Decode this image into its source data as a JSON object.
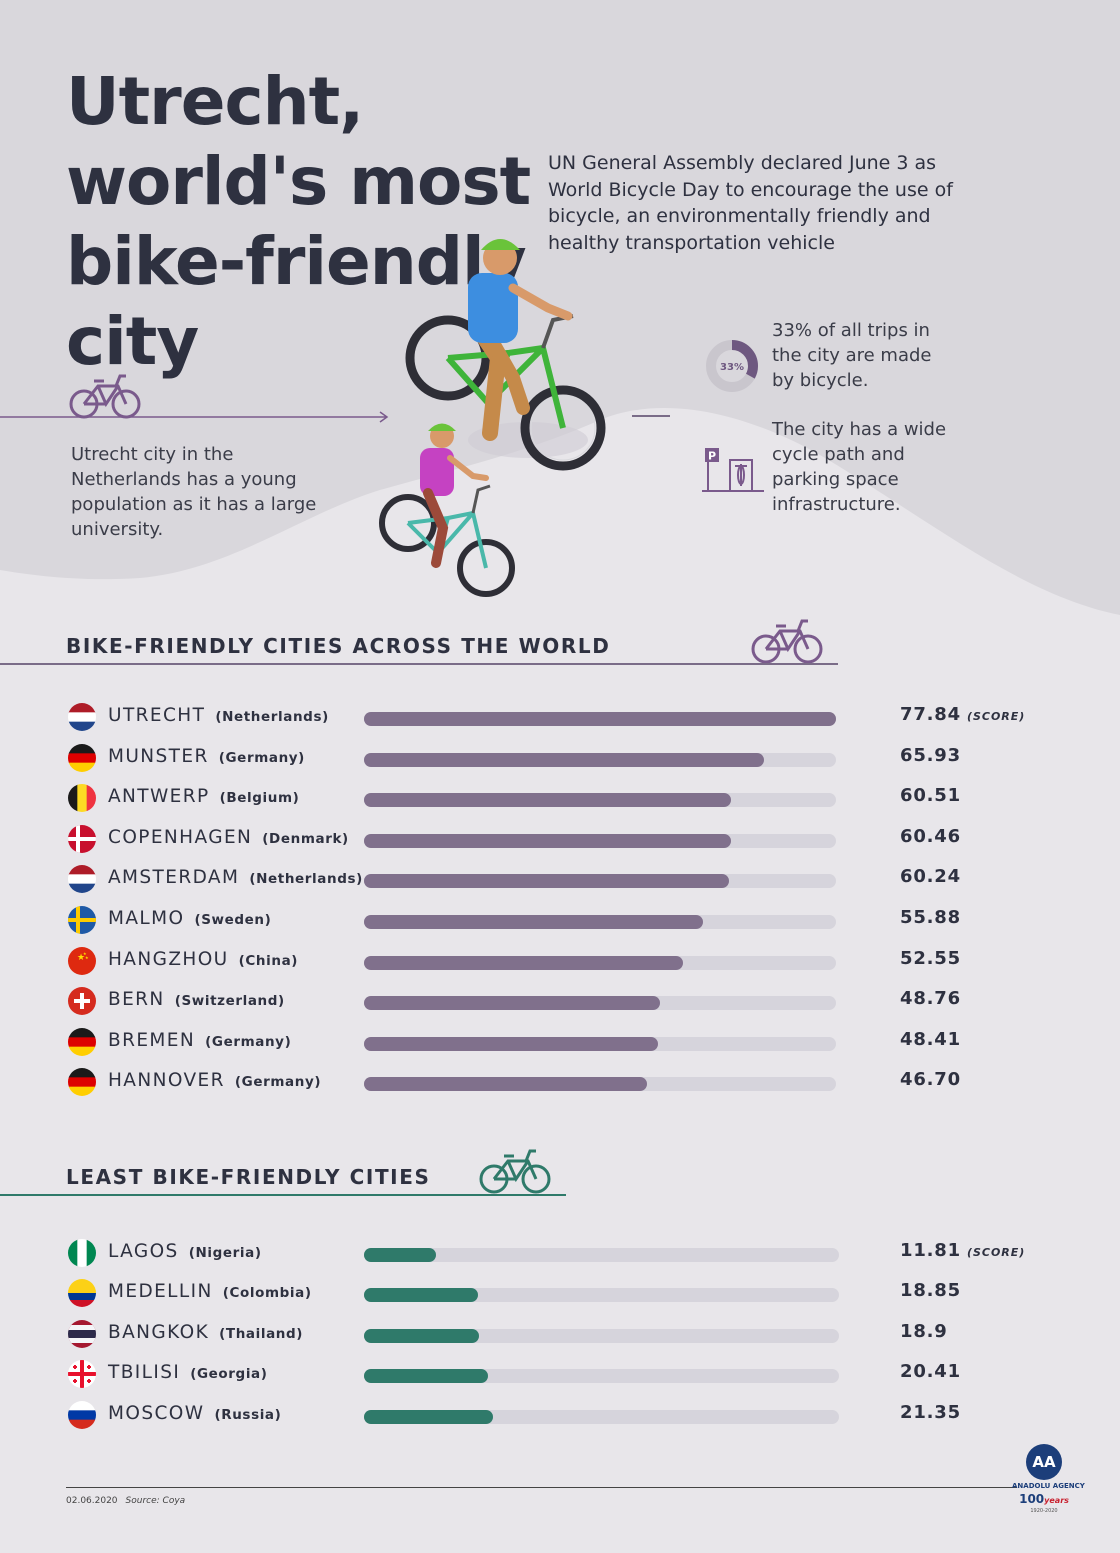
{
  "header": {
    "title": "Utrecht, world's most bike-friendly city",
    "intro": "UN General Assembly declared June 3 as World Bicycle Day to encourage the use of bicycle, an environmentally friendly and healthy transportation vehicle"
  },
  "notes": {
    "left": "Utrecht city in the Netherlands has a young population as it has a large university.",
    "donut_label": "33%",
    "donut_value": 0.33,
    "trips": "33% of all trips in the city are made by bicycle.",
    "parking_letter": "P",
    "infrastructure": "The city has a wide cycle path and parking space infrastructure."
  },
  "sections": {
    "most_title": "BIKE-FRIENDLY CITIES ACROSS THE WORLD",
    "least_title": "LEAST BIKE-FRIENDLY CITIES",
    "score_unit": "(SCORE)"
  },
  "colors": {
    "most_bar": "#80708c",
    "least_bar": "#2f7a6a",
    "track": "#d6d4dc",
    "accent": "#7a6c88"
  },
  "chart_data": [
    {
      "type": "bar",
      "title": "BIKE-FRIENDLY CITIES ACROSS THE WORLD",
      "ylim": [
        0,
        77.84
      ],
      "categories": [
        "UTRECHT",
        "MUNSTER",
        "ANTWERP",
        "COPENHAGEN",
        "AMSTERDAM",
        "MALMO",
        "HANGZHOU",
        "BERN",
        "BREMEN",
        "HANNOVER"
      ],
      "countries": [
        "(Netherlands)",
        "(Germany)",
        "(Belgium)",
        "(Denmark)",
        "(Netherlands)",
        "(Sweden)",
        "(China)",
        "(Switzerland)",
        "(Germany)",
        "(Germany)"
      ],
      "flags": [
        "netherlands",
        "germany",
        "belgium",
        "denmark",
        "netherlands",
        "sweden",
        "china",
        "switzerland",
        "germany",
        "germany"
      ],
      "values": [
        77.84,
        65.93,
        60.51,
        60.46,
        60.24,
        55.88,
        52.55,
        48.76,
        48.41,
        46.7
      ],
      "labels": [
        "77.84",
        "65.93",
        "60.51",
        "60.46",
        "60.24",
        "55.88",
        "52.55",
        "48.76",
        "48.41",
        "46.70"
      ]
    },
    {
      "type": "bar",
      "title": "LEAST BIKE-FRIENDLY CITIES",
      "ylim": [
        0,
        77.84
      ],
      "categories": [
        "LAGOS",
        "MEDELLIN",
        "BANGKOK",
        "TBILISI",
        "MOSCOW"
      ],
      "countries": [
        "(Nigeria)",
        "(Colombia)",
        "(Thailand)",
        "(Georgia)",
        "(Russia)"
      ],
      "flags": [
        "nigeria",
        "colombia",
        "thailand",
        "georgia",
        "russia"
      ],
      "values": [
        11.81,
        18.85,
        18.9,
        20.41,
        21.35
      ],
      "labels": [
        "11.81",
        "18.85",
        "18.9",
        "20.41",
        "21.35"
      ]
    }
  ],
  "footer": {
    "date": "02.06.2020",
    "source": "Source: Coya",
    "logo_text": "AA",
    "agency": "ANADOLU AGENCY",
    "years_mark": "100",
    "years_word": "years",
    "years_range": "1920-2020"
  }
}
